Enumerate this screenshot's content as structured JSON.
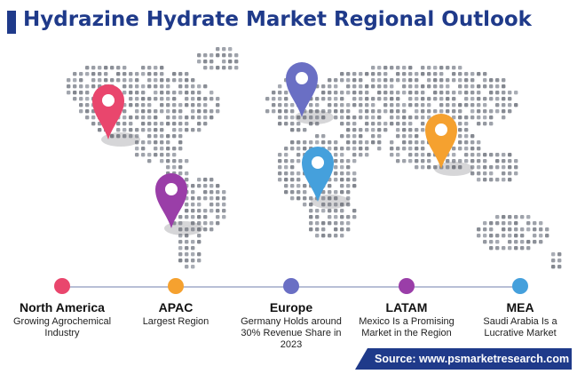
{
  "title": "Hydrazine Hydrate Market Regional Outlook",
  "regions": [
    {
      "name": "North America",
      "desc": "Growing Agrochemical Industry",
      "color": "#e9466d"
    },
    {
      "name": "APAC",
      "desc": "Largest Region",
      "color": "#f5a12f"
    },
    {
      "name": "Europe",
      "desc": "Germany Holds around 30% Revenue Share in 2023",
      "color": "#6a6fc4"
    },
    {
      "name": "LATAM",
      "desc": "Mexico Is a Promising Market in the Region",
      "color": "#9a3ea8"
    },
    {
      "name": "MEA",
      "desc": "Saudi Arabia Is a Lucrative Market",
      "color": "#45a0dc"
    }
  ],
  "source": "Source: www.psmarketresearch.com",
  "icons": [
    "location-pin-icon",
    "dotted-world-map"
  ]
}
